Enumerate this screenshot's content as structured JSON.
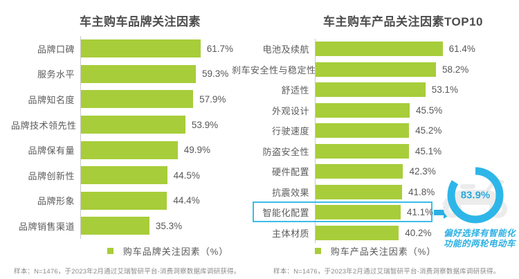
{
  "colors": {
    "bar_green": "#a7cd3a",
    "accent_cyan": "#2cb0e3",
    "title_gray": "#4c4c4c",
    "text_gray": "#595757",
    "footnote_gray": "#8a8a8a"
  },
  "chart_data": [
    {
      "type": "bar",
      "orientation": "horizontal",
      "title": "车主购车品牌关注因素",
      "categories": [
        "品牌口碑",
        "服务水平",
        "品牌知名度",
        "品牌技术领先性",
        "品牌保有量",
        "品牌创新性",
        "品牌形象",
        "品牌销售渠道"
      ],
      "values": [
        61.7,
        59.3,
        57.9,
        53.9,
        49.9,
        44.5,
        44.4,
        35.3
      ],
      "value_labels": [
        "61.7%",
        "59.3%",
        "57.9%",
        "53.9%",
        "49.9%",
        "44.5%",
        "44.4%",
        "35.3%"
      ],
      "xlim": [
        0,
        65
      ],
      "grid": false,
      "legend_position": "bottom",
      "legend": [
        "购车品牌关注因素（%）"
      ],
      "bar_color": "#a7cd3a",
      "footnote": "样本：N=1476，于2023年2月通过艾瑞智研平台-消费洞察数据库调研获得。"
    },
    {
      "type": "bar",
      "orientation": "horizontal",
      "title": "车主购车产品关注因素TOP10",
      "categories": [
        "电池及续航",
        "刹车安全性与稳定性",
        "舒适性",
        "外观设计",
        "行驶速度",
        "防盗安全性",
        "硬件配置",
        "抗震效果",
        "智能化配置",
        "主体材质"
      ],
      "values": [
        61.4,
        58.2,
        53.1,
        45.5,
        45.2,
        45.1,
        42.3,
        41.8,
        41.1,
        40.2
      ],
      "value_labels": [
        "61.4%",
        "58.2%",
        "53.1%",
        "45.5%",
        "45.2%",
        "45.1%",
        "42.3%",
        "41.8%",
        "41.1%",
        "40.2%"
      ],
      "xlim": [
        0,
        65
      ],
      "grid": false,
      "legend_position": "bottom",
      "legend": [
        "购车产品关注因素（%）"
      ],
      "bar_color": "#a7cd3a",
      "footnote": "样本：N=1476，于2023年2月通过艾瑞智研平台-消费洞察数据库调研获得。",
      "highlight_category": "智能化配置",
      "annotation": {
        "type": "donut",
        "value": "83.9%",
        "value_numeric": 83.9,
        "caption": [
          "偏好选择有智能化",
          "功能的两轮电动车"
        ]
      }
    }
  ]
}
